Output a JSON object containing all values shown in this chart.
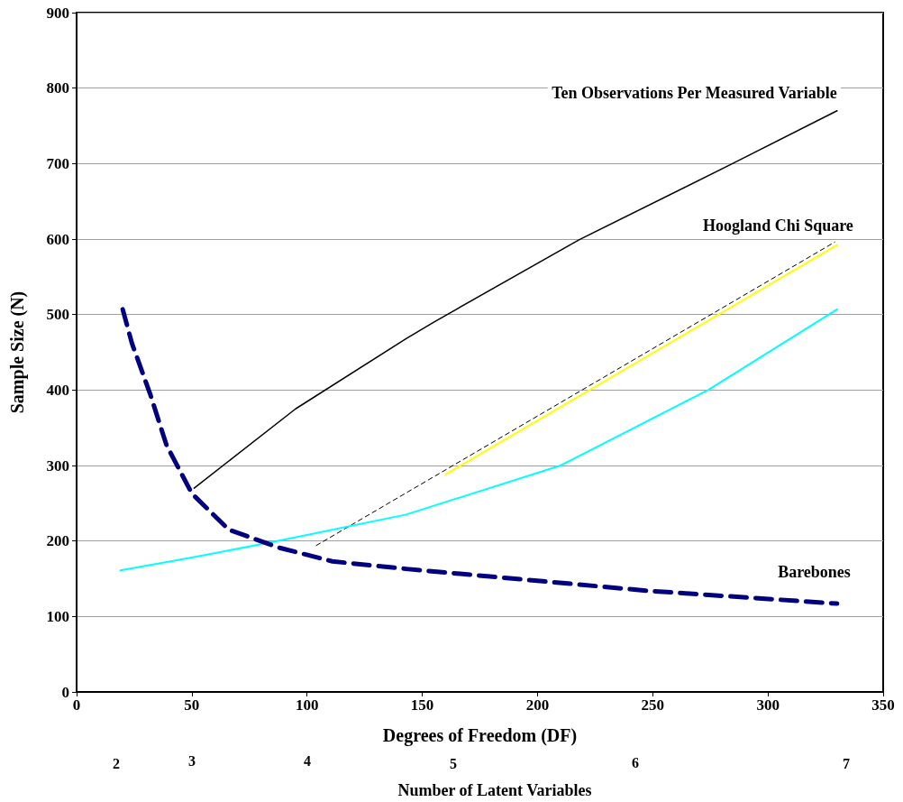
{
  "chart_data": {
    "type": "line",
    "xlabel": "Degrees of Freedom (DF)",
    "ylabel": "Sample Size (N)",
    "annotations": [
      "2",
      "3",
      "4",
      "5",
      "6",
      "7",
      "Number of Latent Variables"
    ],
    "xlim": [
      0,
      350
    ],
    "xticks": [
      0,
      50,
      100,
      150,
      200,
      250,
      300,
      350
    ],
    "ylim": [
      0,
      900
    ],
    "yticks": [
      0,
      100,
      200,
      300,
      400,
      500,
      600,
      700,
      800,
      900
    ],
    "grid": "y",
    "marker": "none",
    "series": [
      {
        "name": "Ten Observations Per Measured Variable",
        "color": "#000000",
        "line_style": "solid",
        "x": [
          51,
          95,
          143,
          155,
          218,
          284,
          330
        ],
        "values": [
          270,
          375,
          468,
          490,
          599,
          699,
          770
        ]
      },
      {
        "name": "Hoogland Chi Square",
        "color": "#ffff00",
        "line_style": "solid",
        "x": [
          160,
          330
        ],
        "values": [
          288,
          592
        ]
      },
      {
        "color": "#000000",
        "line_style": "dashed",
        "x": [
          104,
          329
        ],
        "values": [
          194,
          596
        ]
      },
      {
        "color": "#00ffff",
        "line_style": "solid",
        "x": [
          19,
          50,
          89,
          143,
          210,
          274,
          330
        ],
        "values": [
          161,
          178,
          201,
          235,
          300,
          400,
          507
        ]
      },
      {
        "name": "Barebones",
        "color": "#000080",
        "line_style": "dashed",
        "x": [
          20,
          24,
          32,
          39,
          50,
          66,
          88,
          111,
          143,
          248,
          330
        ],
        "values": [
          507,
          462,
          394,
          327,
          263,
          215,
          191,
          173,
          163,
          134,
          117
        ]
      }
    ]
  }
}
